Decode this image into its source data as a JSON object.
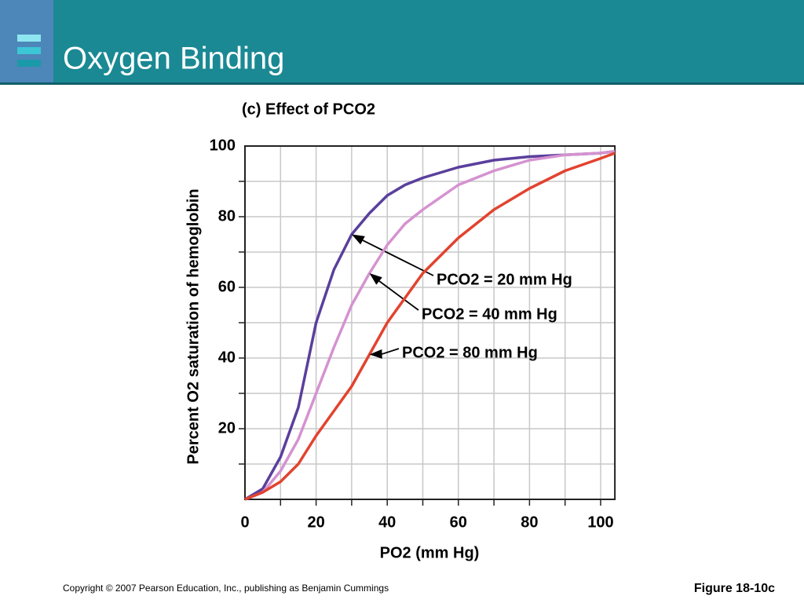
{
  "slide": {
    "title": "Oxygen Binding",
    "copyright": "Copyright © 2007 Pearson Education, Inc., publishing as Benjamin Cummings",
    "figure": "Figure 18-10c"
  },
  "chart_data": {
    "type": "line",
    "title": "(c)  Effect of PCO2",
    "x_label": "PO2 (mm Hg)",
    "y_label": "Percent O2 saturation of hemoglobin",
    "x": [
      0,
      5,
      10,
      15,
      20,
      25,
      30,
      35,
      40,
      45,
      50,
      60,
      70,
      80,
      90,
      100,
      104
    ],
    "series": [
      {
        "name": "PCO2 = 20 mm Hg",
        "color": "#5a3f9c",
        "values": [
          0,
          3,
          12,
          26,
          50,
          65,
          75,
          81,
          86,
          89,
          91,
          94,
          96,
          97,
          97.5,
          98,
          98.5
        ]
      },
      {
        "name": "PCO2 = 40 mm Hg",
        "color": "#d592d0",
        "values": [
          0,
          2,
          8,
          17,
          30,
          43,
          55,
          64,
          72,
          78,
          82,
          89,
          93,
          96,
          97.5,
          98,
          98.5
        ]
      },
      {
        "name": "PCO2 = 80 mm Hg",
        "color": "#e2432f",
        "values": [
          0,
          2,
          5,
          10,
          18,
          25,
          32,
          41,
          50,
          57,
          64,
          74,
          82,
          88,
          93,
          96.5,
          98
        ]
      }
    ],
    "xlim": [
      0,
      104
    ],
    "ylim": [
      0,
      100
    ],
    "xticks": [
      0,
      20,
      40,
      60,
      80,
      100
    ],
    "yticks": [
      20,
      40,
      60,
      80,
      100
    ],
    "xgrid": [
      10,
      20,
      30,
      40,
      50,
      60,
      70,
      80,
      90,
      100
    ],
    "ygrid": [
      10,
      20,
      30,
      40,
      50,
      60,
      70,
      80,
      90
    ],
    "grid": true
  }
}
